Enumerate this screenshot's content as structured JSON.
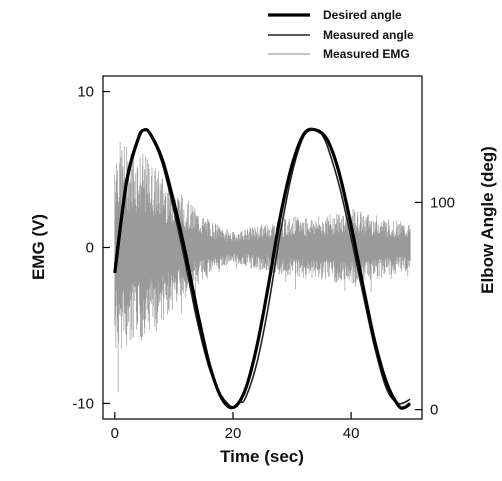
{
  "chart_data": {
    "type": "line",
    "title": "",
    "xlabel": "Time (sec)",
    "ylabel": "EMG (V)",
    "y2label": "Elbow Angle (deg)",
    "xlim": [
      -2,
      52
    ],
    "ylim": [
      -11,
      11
    ],
    "y2lim": [
      -4.5,
      161
    ],
    "x_ticks": [
      0,
      20,
      40
    ],
    "y_ticks": [
      -10,
      0,
      10
    ],
    "y2_ticks": [
      0,
      100
    ],
    "grid": false,
    "legend_position": "top-right",
    "series": [
      {
        "name": "Desired angle",
        "axis": "right",
        "style": "thick solid",
        "color": "#000000",
        "x": [
          0,
          2,
          4,
          5,
          6,
          8,
          10,
          12,
          14,
          16,
          18,
          20,
          22,
          24,
          26,
          28,
          30,
          32,
          34,
          36,
          38,
          40,
          42,
          44,
          46,
          48,
          49,
          50
        ],
        "y": [
          66,
          110,
          131,
          135,
          133,
          121,
          100,
          75,
          47,
          22,
          6,
          1,
          9,
          30,
          60,
          93,
          118,
          133,
          135,
          130,
          114,
          89,
          60,
          33,
          13,
          2,
          1,
          3
        ]
      },
      {
        "name": "Measured angle",
        "axis": "right",
        "style": "thin solid",
        "color": "#222222",
        "x": [
          0,
          2,
          4,
          5,
          6,
          8,
          10,
          12,
          14,
          16,
          18,
          20,
          21,
          22,
          24,
          26,
          28,
          30,
          32,
          34,
          35,
          36,
          38,
          40,
          42,
          44,
          46,
          48,
          50
        ],
        "y": [
          70,
          112,
          132,
          135,
          133,
          119,
          96,
          70,
          42,
          20,
          7,
          1,
          4,
          5,
          22,
          50,
          85,
          114,
          132,
          135,
          133,
          127,
          108,
          83,
          56,
          30,
          10,
          3,
          5
        ]
      },
      {
        "name": "Measured EMG",
        "axis": "left",
        "style": "noise band",
        "color": "#888888",
        "x": [
          0,
          5,
          10,
          15,
          20,
          25,
          30,
          35,
          40,
          45,
          50
        ],
        "amplitude": [
          7,
          6,
          4,
          2,
          1,
          1.5,
          2,
          2,
          2.5,
          2,
          1.5
        ],
        "min": -10,
        "max": 7
      }
    ]
  }
}
